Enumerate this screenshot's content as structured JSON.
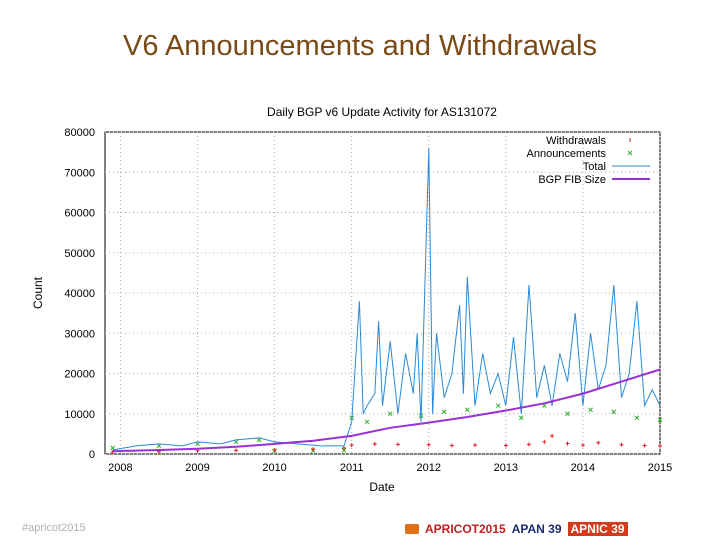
{
  "slide": {
    "title": "V6 Announcements and Withdrawals",
    "footer_left": "#apricot2015",
    "logos": {
      "apricot": "APRICOT2015",
      "apan": "APAN 39",
      "apnic": "APNIC 39"
    }
  },
  "chart_data": {
    "type": "line",
    "title": "Daily BGP v6 Update Activity for AS131072",
    "xlabel": "Date",
    "ylabel": "Count",
    "xlim": [
      2007.8,
      2015.0
    ],
    "ylim": [
      0,
      80000
    ],
    "x_ticks": [
      "2008",
      "2009",
      "2010",
      "2011",
      "2012",
      "2013",
      "2014",
      "2015"
    ],
    "y_ticks": [
      "0",
      "10000",
      "20000",
      "30000",
      "40000",
      "50000",
      "60000",
      "70000",
      "80000"
    ],
    "legend_position": "top-right",
    "colors": {
      "withdrawals": "#e02020",
      "announcements": "#30b030",
      "total": "#2a8ad8",
      "fib": "#9a30d8"
    },
    "series": [
      {
        "name": "Withdrawals",
        "style": "points",
        "x": [
          2007.9,
          2008.5,
          2009.0,
          2009.5,
          2010.0,
          2010.5,
          2010.9,
          2011.0,
          2011.3,
          2011.6,
          2012.0,
          2012.3,
          2012.6,
          2013.0,
          2013.3,
          2013.5,
          2013.6,
          2013.8,
          2014.0,
          2014.2,
          2014.5,
          2014.8,
          2015.0
        ],
        "values": [
          500,
          600,
          800,
          900,
          1000,
          1200,
          1500,
          2200,
          2500,
          2400,
          2300,
          2100,
          2200,
          2100,
          2400,
          3000,
          4500,
          2600,
          2200,
          2800,
          2300,
          2100,
          2000
        ]
      },
      {
        "name": "Announcements",
        "style": "points",
        "x": [
          2007.9,
          2008.5,
          2009.0,
          2009.5,
          2009.8,
          2010.0,
          2010.5,
          2010.9,
          2011.0,
          2011.2,
          2011.5,
          2011.9,
          2012.2,
          2012.5,
          2012.9,
          2013.2,
          2013.5,
          2013.8,
          2014.1,
          2014.4,
          2014.7,
          2015.0
        ],
        "values": [
          1500,
          2000,
          2500,
          3000,
          3500,
          800,
          800,
          900,
          9000,
          8000,
          10000,
          9500,
          10500,
          11000,
          12000,
          9000,
          12000,
          10000,
          11000,
          10500,
          9000,
          8500
        ]
      },
      {
        "name": "Total",
        "style": "line",
        "x": [
          2007.9,
          2008.2,
          2008.5,
          2008.8,
          2009.0,
          2009.3,
          2009.5,
          2009.8,
          2010.0,
          2010.3,
          2010.6,
          2010.9,
          2011.0,
          2011.1,
          2011.15,
          2011.2,
          2011.3,
          2011.35,
          2011.4,
          2011.5,
          2011.6,
          2011.7,
          2011.8,
          2011.85,
          2011.9,
          2012.0,
          2012.05,
          2012.1,
          2012.2,
          2012.3,
          2012.4,
          2012.45,
          2012.5,
          2012.6,
          2012.7,
          2012.8,
          2012.9,
          2013.0,
          2013.1,
          2013.2,
          2013.3,
          2013.4,
          2013.5,
          2013.6,
          2013.7,
          2013.8,
          2013.9,
          2014.0,
          2014.1,
          2014.2,
          2014.3,
          2014.4,
          2014.5,
          2014.6,
          2014.7,
          2014.8,
          2014.9,
          2015.0
        ],
        "values": [
          1000,
          2000,
          2500,
          2000,
          3000,
          2500,
          3500,
          4000,
          3000,
          2500,
          2000,
          2000,
          8000,
          38000,
          10000,
          12000,
          15000,
          33000,
          12000,
          28000,
          10000,
          25000,
          15000,
          30000,
          8000,
          76000,
          10000,
          30000,
          14000,
          20000,
          37000,
          15000,
          44000,
          12000,
          25000,
          15000,
          20000,
          12000,
          29000,
          10000,
          42000,
          14000,
          22000,
          12000,
          25000,
          18000,
          35000,
          12000,
          30000,
          16000,
          22000,
          42000,
          14000,
          20000,
          38000,
          12000,
          16000,
          12000
        ]
      },
      {
        "name": "BGP FIB Size",
        "style": "line",
        "x": [
          2007.9,
          2008.5,
          2009.0,
          2009.5,
          2010.0,
          2010.5,
          2011.0,
          2011.5,
          2012.0,
          2012.5,
          2013.0,
          2013.5,
          2014.0,
          2014.5,
          2015.0
        ],
        "values": [
          700,
          1000,
          1300,
          1800,
          2500,
          3300,
          4500,
          6500,
          7800,
          9200,
          10800,
          12600,
          15000,
          18000,
          21000
        ]
      }
    ]
  }
}
